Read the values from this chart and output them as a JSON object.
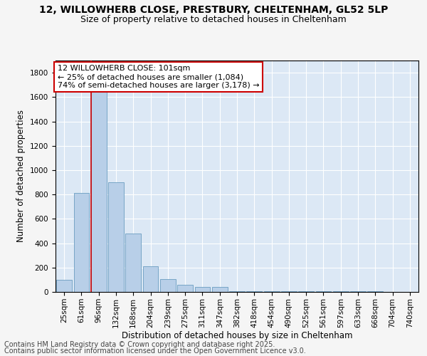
{
  "title_line1": "12, WILLOWHERB CLOSE, PRESTBURY, CHELTENHAM, GL52 5LP",
  "title_line2": "Size of property relative to detached houses in Cheltenham",
  "xlabel": "Distribution of detached houses by size in Cheltenham",
  "ylabel": "Number of detached properties",
  "bar_color": "#b8cfe8",
  "bar_edge_color": "#6a9cc0",
  "annotation_line1": "12 WILLOWHERB CLOSE: 101sqm",
  "annotation_line2": "← 25% of detached houses are smaller (1,084)",
  "annotation_line3": "74% of semi-detached houses are larger (3,178) →",
  "annotation_box_color": "#ffffff",
  "annotation_box_edge_color": "#cc0000",
  "categories": [
    "25sqm",
    "61sqm",
    "96sqm",
    "132sqm",
    "168sqm",
    "204sqm",
    "239sqm",
    "275sqm",
    "311sqm",
    "347sqm",
    "382sqm",
    "418sqm",
    "454sqm",
    "490sqm",
    "525sqm",
    "561sqm",
    "597sqm",
    "633sqm",
    "668sqm",
    "704sqm",
    "740sqm"
  ],
  "values": [
    100,
    810,
    1660,
    900,
    480,
    210,
    105,
    60,
    40,
    40,
    5,
    5,
    5,
    5,
    5,
    5,
    5,
    5,
    5,
    2,
    2
  ],
  "ylim": [
    0,
    1900
  ],
  "yticks": [
    0,
    200,
    400,
    600,
    800,
    1000,
    1200,
    1400,
    1600,
    1800
  ],
  "background_color": "#dce8f5",
  "fig_background": "#f5f5f5",
  "footer_line1": "Contains HM Land Registry data © Crown copyright and database right 2025.",
  "footer_line2": "Contains public sector information licensed under the Open Government Licence v3.0.",
  "title_fontsize": 10,
  "subtitle_fontsize": 9,
  "axis_label_fontsize": 8.5,
  "tick_fontsize": 7.5,
  "annotation_fontsize": 8,
  "footer_fontsize": 7
}
